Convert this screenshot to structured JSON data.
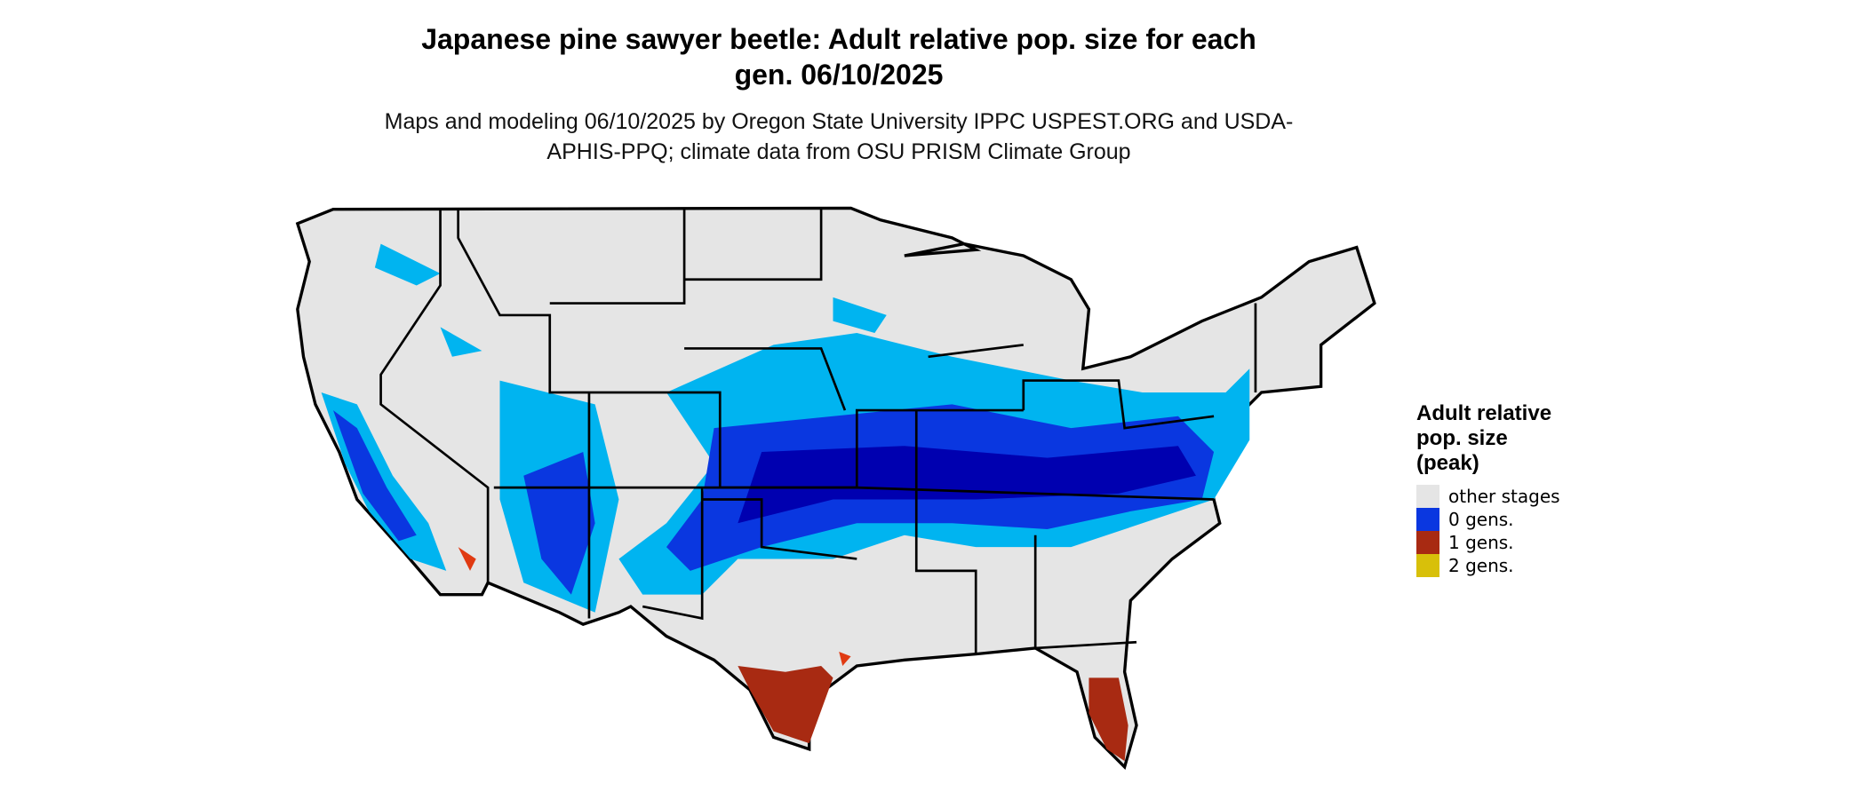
{
  "header": {
    "title": "Japanese pine sawyer beetle: Adult relative pop. size for each gen. 06/10/2025",
    "subtitle": "Maps and modeling 06/10/2025 by Oregon State University IPPC USPEST.ORG and USDA-APHIS-PPQ; climate data from OSU PRISM Climate Group"
  },
  "legend": {
    "title": "Adult relative pop. size (peak)",
    "items": [
      {
        "label": "other stages",
        "color": "#e5e5e5"
      },
      {
        "label": "0 gens.",
        "color": "#0a37e0"
      },
      {
        "label": "1 gens.",
        "color": "#a82a12"
      },
      {
        "label": "2 gens.",
        "color": "#d8c00a"
      }
    ]
  }
}
